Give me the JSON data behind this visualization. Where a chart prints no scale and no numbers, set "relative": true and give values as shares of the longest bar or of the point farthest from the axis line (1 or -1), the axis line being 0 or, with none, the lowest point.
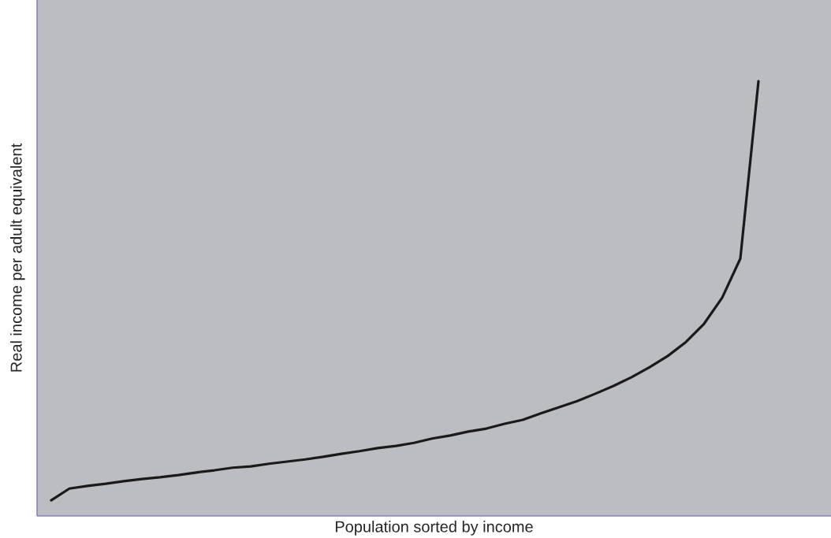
{
  "chart_data": {
    "type": "line",
    "relative": true,
    "xlabel": "Population sorted by income",
    "ylabel": "Real income per adult equivalent",
    "color": "#1a1a1a",
    "categories": [
      null,
      null,
      null,
      null,
      null,
      null,
      null,
      null,
      null,
      null,
      null,
      null,
      null,
      null,
      null,
      null,
      null,
      null,
      null,
      null,
      null,
      null,
      null,
      null,
      null,
      null,
      null,
      null,
      null,
      null,
      null,
      null,
      null,
      null,
      null,
      null,
      null,
      null,
      null,
      null
    ],
    "values": [
      0.036,
      0.063,
      0.069,
      0.074,
      0.08,
      0.085,
      0.089,
      0.094,
      0.1,
      0.105,
      0.111,
      0.114,
      0.12,
      0.125,
      0.13,
      0.136,
      0.143,
      0.149,
      0.156,
      0.161,
      0.168,
      0.178,
      0.185,
      0.194,
      0.201,
      0.212,
      0.221,
      0.236,
      0.25,
      0.264,
      0.281,
      0.299,
      0.319,
      0.342,
      0.368,
      0.4,
      0.442,
      0.502,
      0.592,
      1.0
    ]
  }
}
